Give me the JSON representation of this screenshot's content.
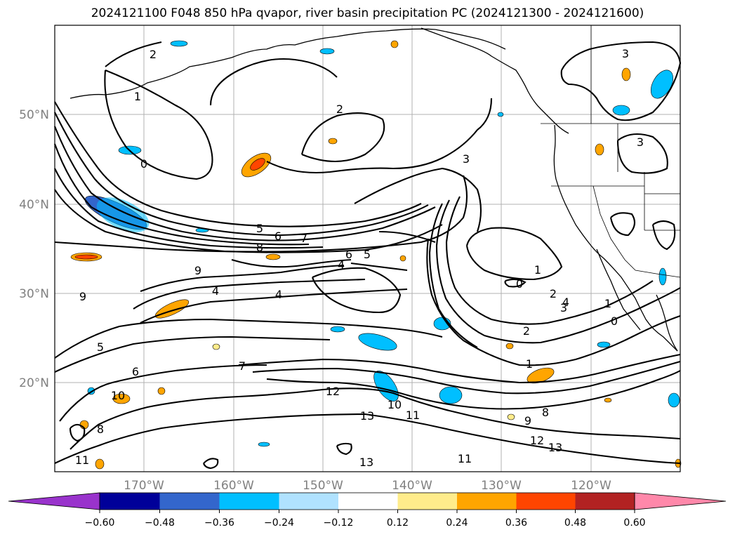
{
  "title": "2024121100 F048 850 hPa qvapor, river basin precipitation PC (2024121300 - 2024121600)",
  "map": {
    "lat_labels": [
      "50°N",
      "40°N",
      "30°N",
      "20°N"
    ],
    "lon_labels": [
      "170°W",
      "160°W",
      "150°W",
      "140°W",
      "130°W",
      "120°W"
    ],
    "contour_labels": [
      "2",
      "1",
      "0",
      "2",
      "3",
      "3",
      "3",
      "5",
      "6",
      "7",
      "8",
      "9",
      "4",
      "6",
      "5",
      "4",
      "9",
      "4",
      "1",
      "0",
      "2",
      "4",
      "3",
      "1",
      "2",
      "0",
      "6",
      "5",
      "7",
      "12",
      "10",
      "11",
      "13",
      "9",
      "8",
      "12",
      "13",
      "11",
      "13",
      "10",
      "8",
      "11",
      "1"
    ]
  },
  "colorbar": {
    "colors": [
      "#9933cc",
      "#000099",
      "#3366cc",
      "#00bfff",
      "#b0e2ff",
      "#ffffff",
      "#ffec8b",
      "#ffa500",
      "#ff4500",
      "#b22222",
      "#ff88aa"
    ],
    "tick_labels": [
      "−0.60",
      "−0.48",
      "−0.36",
      "−0.24",
      "−0.12",
      "0.12",
      "0.24",
      "0.36",
      "0.48",
      "0.60"
    ]
  }
}
